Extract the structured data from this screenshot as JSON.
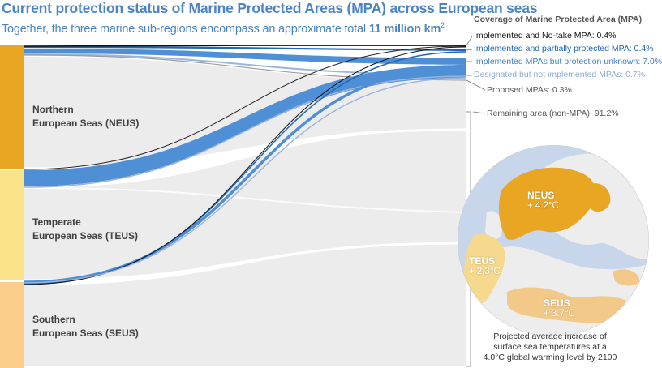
{
  "title": "Current protection status of Marine Protected Areas (MPA) across European seas",
  "subtitle": {
    "text": "Together, the three marine sub-regions encompass an approximate total ",
    "bold": "11 million km",
    "sup": "2"
  },
  "regions": [
    {
      "line1": "Northern",
      "line2": "European Seas (NEUS)",
      "color": "#e8a623"
    },
    {
      "line1": "Temperate",
      "line2": "European Seas (TEUS)",
      "color": "#fbe38a"
    },
    {
      "line1": "Southern",
      "line2": "European Seas (SEUS)",
      "color": "#fbcf8b"
    }
  ],
  "legend": {
    "title": "Coverage of Marine Protected Area (MPA)",
    "items": [
      {
        "label": "Implemented and No-take MPA: 0.4%",
        "value": 0.4,
        "color": "#000000"
      },
      {
        "label": "Implemented and partially protected MPA: 0.4%",
        "value": 0.4,
        "color": "#1f66b5"
      },
      {
        "label": "Implemented MPAs but protection unknown: 7.0%",
        "value": 7.0,
        "color": "#4f8fd6"
      },
      {
        "label": "Designated but not implemented MPAs: 0.7%",
        "value": 0.7,
        "color": "#9ab5da"
      },
      {
        "label": "Proposed MPAs: 0.3%",
        "value": 0.3,
        "color": "#555555"
      },
      {
        "label": "Remaining area (non-MPA): 91.2%",
        "value": 91.2,
        "color": "#555555"
      }
    ]
  },
  "map": {
    "labels": [
      {
        "name": "NEUS",
        "value": "+ 4.2°C"
      },
      {
        "name": "TEUS",
        "value": "+ 2.3°C"
      },
      {
        "name": "SEUS",
        "value": "+ 3.7°C"
      }
    ],
    "caption": [
      "Projected average increase of",
      "surface sea temperatures at a",
      "4.0°C global warming level by 2100"
    ]
  }
}
